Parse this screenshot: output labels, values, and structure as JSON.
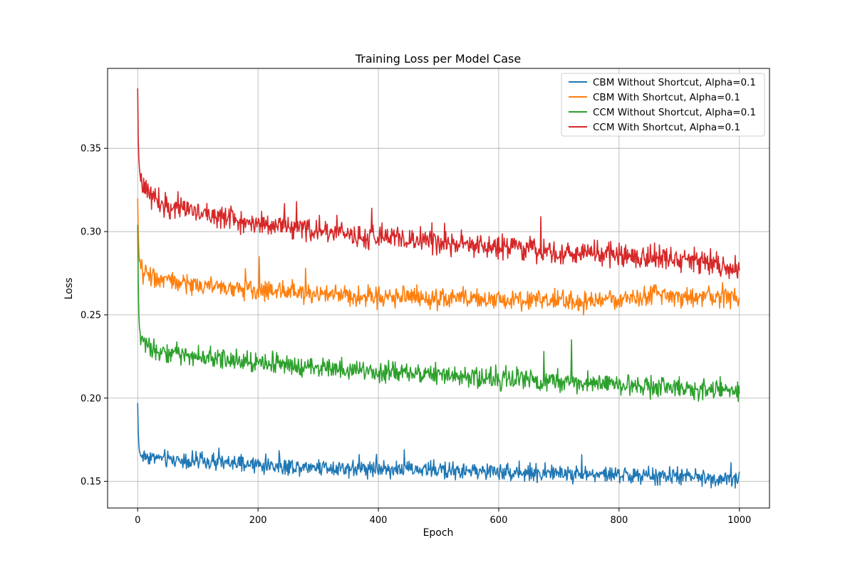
{
  "chart_data": {
    "type": "line",
    "title": "Training Loss per Model Case",
    "xlabel": "Epoch",
    "ylabel": "Loss",
    "xlim": [
      -50,
      1050
    ],
    "ylim": [
      0.134,
      0.398
    ],
    "x_ticks": [
      0,
      200,
      400,
      600,
      800,
      1000
    ],
    "y_ticks": [
      0.15,
      0.2,
      0.25,
      0.3,
      0.35
    ],
    "x_tick_labels": [
      "0",
      "200",
      "400",
      "600",
      "800",
      "1000"
    ],
    "y_tick_labels": [
      "0.15",
      "0.20",
      "0.25",
      "0.30",
      "0.35"
    ],
    "grid": true,
    "legend_position": "top-right",
    "x": [
      0,
      1,
      2,
      3,
      4,
      5,
      10,
      20,
      30,
      40,
      50,
      75,
      100,
      125,
      150,
      175,
      200,
      250,
      300,
      350,
      400,
      450,
      500,
      550,
      600,
      650,
      700,
      750,
      800,
      850,
      900,
      950,
      1000
    ],
    "series": [
      {
        "name": "CBM Without Shortcut, Alpha=0.1",
        "color": "#1f77b4",
        "values": [
          0.197,
          0.18,
          0.172,
          0.168,
          0.166,
          0.166,
          0.165,
          0.165,
          0.164,
          0.164,
          0.163,
          0.163,
          0.162,
          0.161,
          0.161,
          0.16,
          0.16,
          0.159,
          0.159,
          0.158,
          0.158,
          0.157,
          0.157,
          0.156,
          0.156,
          0.155,
          0.155,
          0.154,
          0.154,
          0.153,
          0.153,
          0.152,
          0.152
        ],
        "noise": 0.0025,
        "spikes": [
          [
            135,
            0.17
          ],
          [
            443,
            0.169
          ],
          [
            738,
            0.166
          ],
          [
            993,
            0.146
          ]
        ]
      },
      {
        "name": "CBM With Shortcut, Alpha=0.1",
        "color": "#ff7f0e",
        "values": [
          0.32,
          0.3,
          0.288,
          0.282,
          0.279,
          0.277,
          0.276,
          0.274,
          0.272,
          0.271,
          0.27,
          0.269,
          0.268,
          0.267,
          0.266,
          0.265,
          0.265,
          0.264,
          0.263,
          0.262,
          0.261,
          0.261,
          0.26,
          0.26,
          0.259,
          0.259,
          0.258,
          0.258,
          0.259,
          0.262,
          0.261,
          0.26,
          0.26
        ],
        "noise": 0.003,
        "spikes": [
          [
            202,
            0.285
          ],
          [
            279,
            0.278
          ],
          [
            693,
            0.266
          ]
        ]
      },
      {
        "name": "CCM Without Shortcut, Alpha=0.1",
        "color": "#2ca02c",
        "values": [
          0.304,
          0.27,
          0.25,
          0.242,
          0.238,
          0.236,
          0.233,
          0.231,
          0.229,
          0.228,
          0.227,
          0.226,
          0.225,
          0.224,
          0.223,
          0.222,
          0.222,
          0.22,
          0.219,
          0.217,
          0.216,
          0.215,
          0.214,
          0.213,
          0.212,
          0.211,
          0.21,
          0.209,
          0.208,
          0.207,
          0.206,
          0.205,
          0.204
        ],
        "noise": 0.003,
        "spikes": [
          [
            675,
            0.228
          ],
          [
            721,
            0.235
          ],
          [
            925,
            0.199
          ],
          [
            998,
            0.198
          ]
        ]
      },
      {
        "name": "CCM With Shortcut, Alpha=0.1",
        "color": "#d62728",
        "values": [
          0.386,
          0.355,
          0.343,
          0.338,
          0.335,
          0.333,
          0.327,
          0.322,
          0.32,
          0.318,
          0.317,
          0.314,
          0.312,
          0.31,
          0.309,
          0.307,
          0.305,
          0.303,
          0.3,
          0.298,
          0.296,
          0.295,
          0.293,
          0.291,
          0.29,
          0.289,
          0.288,
          0.287,
          0.286,
          0.284,
          0.283,
          0.281,
          0.277
        ],
        "noise": 0.0035,
        "spikes": [
          [
            389,
            0.314
          ],
          [
            510,
            0.305
          ],
          [
            670,
            0.309
          ],
          [
            997,
            0.272
          ]
        ]
      }
    ]
  }
}
